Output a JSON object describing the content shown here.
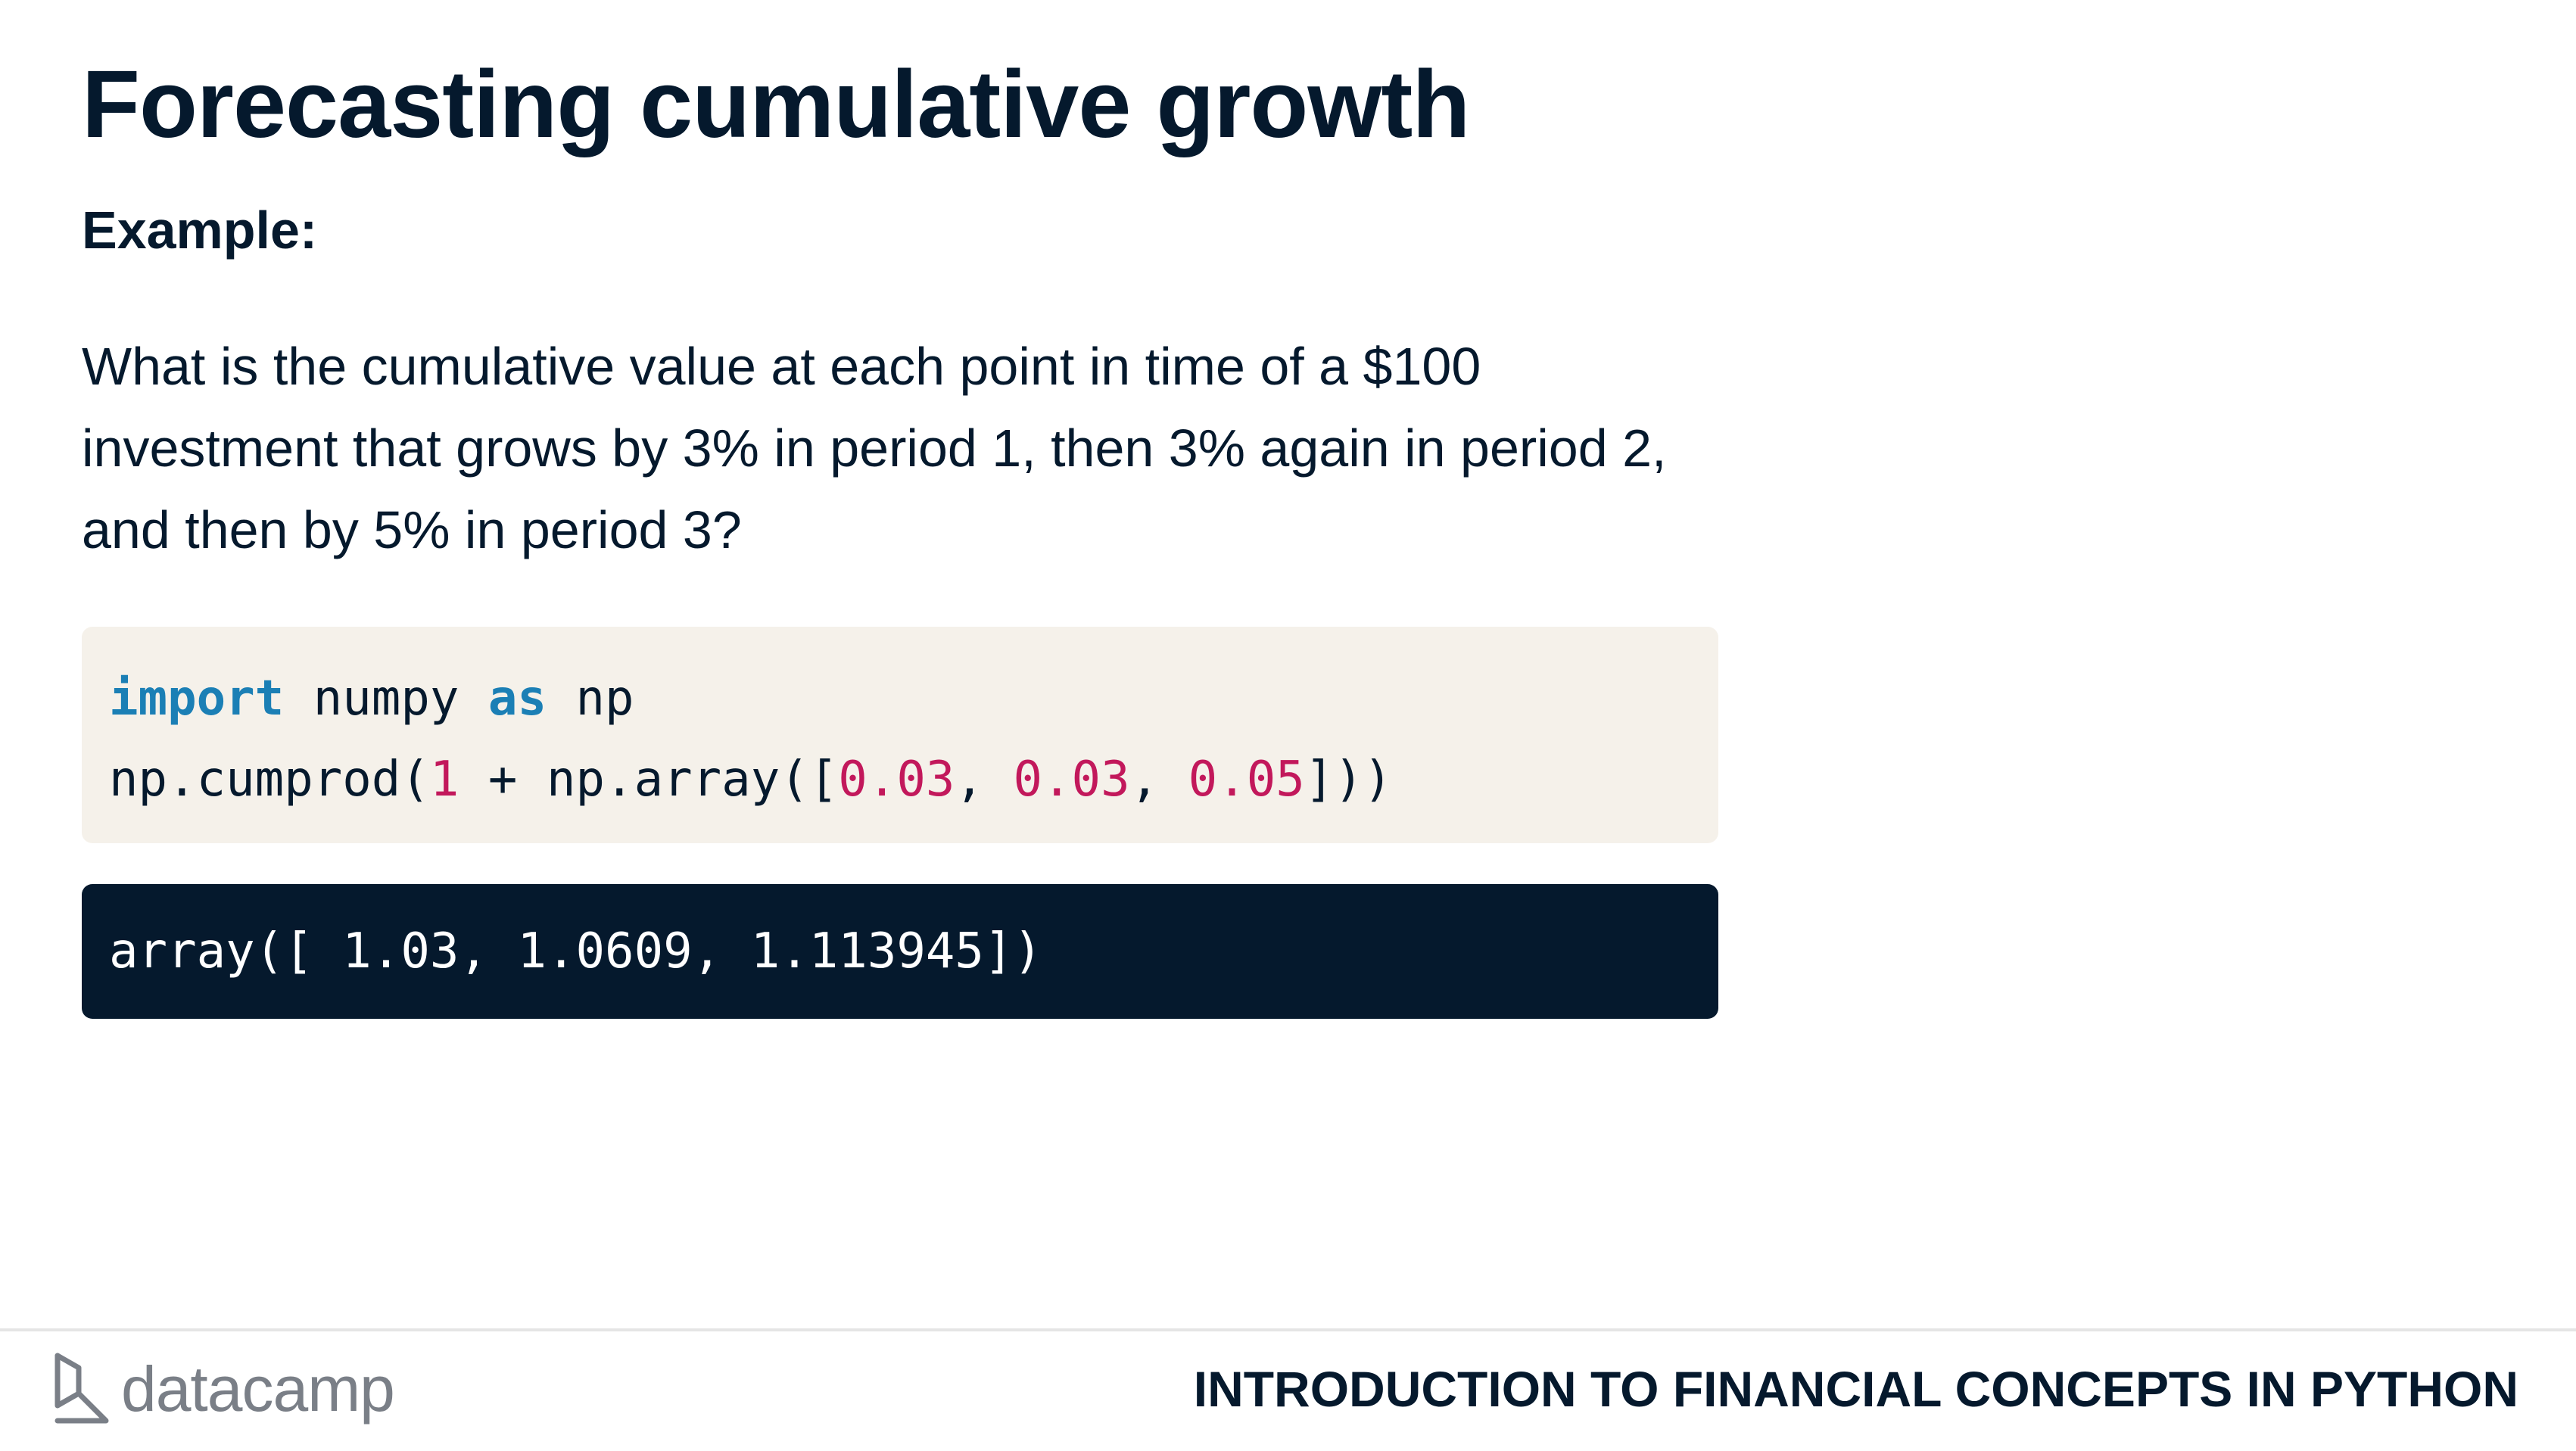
{
  "slide": {
    "title": "Forecasting cumulative growth",
    "example_label": "Example:",
    "question": "What is the cumulative value at each point in time of a $100 investment that grows by 3% in period 1, then 3% again in period 2, and then by 5% in period 3?"
  },
  "code": {
    "line1": {
      "kw_import": "import",
      "module": " numpy ",
      "kw_as": "as",
      "alias": " np"
    },
    "line2": {
      "call_open": "np.cumprod(",
      "one": "1",
      "middle": " + np.array([",
      "v1": "0.03",
      "sep1": ", ",
      "v2": "0.03",
      "sep2": ", ",
      "v3": "0.05",
      "close": "]))"
    }
  },
  "output": {
    "text": "array([ 1.03, 1.0609, 1.113945])"
  },
  "footer": {
    "logo_text": "datacamp",
    "course_title": "INTRODUCTION TO FINANCIAL CONCEPTS IN PYTHON"
  },
  "colors": {
    "text": "#05192d",
    "keyword": "#1b7fb5",
    "number": "#c2185b",
    "code_bg": "#f5f1ea",
    "output_bg": "#05192d",
    "logo": "#7a7f87"
  },
  "icons": {
    "logo": "datacamp-logo-icon"
  }
}
